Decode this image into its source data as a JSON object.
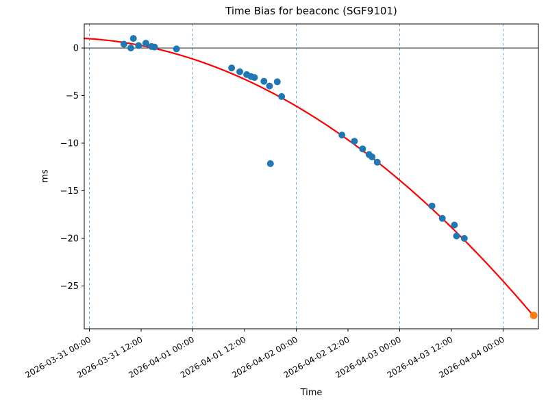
{
  "chart_data": {
    "type": "scatter",
    "title": "Time Bias for beaconc (SGF9101)",
    "xlabel": "Time",
    "ylabel": "ms",
    "x_unit": "hours since 2026-03-31 00:00",
    "xlim_hours": [
      -1.2,
      104.2
    ],
    "ylim": [
      -29.5,
      2.52
    ],
    "y_ticks": [
      0,
      -5,
      -10,
      -15,
      -20,
      -25
    ],
    "x_ticks": [
      {
        "hour": 0,
        "label": "2026-03-31 00:00"
      },
      {
        "hour": 12,
        "label": "2026-03-31 12:00"
      },
      {
        "hour": 24,
        "label": "2026-04-01 00:00"
      },
      {
        "hour": 36,
        "label": "2026-04-01 12:00"
      },
      {
        "hour": 48,
        "label": "2026-04-02 00:00"
      },
      {
        "hour": 60,
        "label": "2026-04-02 12:00"
      },
      {
        "hour": 72,
        "label": "2026-04-03 00:00"
      },
      {
        "hour": 84,
        "label": "2026-04-03 12:00"
      },
      {
        "hour": 96,
        "label": "2026-04-04 00:00"
      }
    ],
    "grid_hours": [
      0,
      24,
      48,
      72,
      96
    ],
    "zero_line": 0,
    "series": [
      {
        "name": "time-bias-observations",
        "color": "#1f77b4",
        "marker_radius": 5,
        "points": [
          [
            8.0,
            0.4
          ],
          [
            9.6,
            0.0
          ],
          [
            10.2,
            1.0
          ],
          [
            11.4,
            0.25
          ],
          [
            13.1,
            0.5
          ],
          [
            14.4,
            0.15
          ],
          [
            15.1,
            0.1
          ],
          [
            20.2,
            -0.1
          ],
          [
            33.0,
            -2.1
          ],
          [
            34.9,
            -2.5
          ],
          [
            36.5,
            -2.8
          ],
          [
            37.5,
            -3.0
          ],
          [
            38.3,
            -3.1
          ],
          [
            40.5,
            -3.5
          ],
          [
            41.8,
            -4.0
          ],
          [
            42.0,
            -12.15
          ],
          [
            43.6,
            -3.55
          ],
          [
            44.6,
            -5.1
          ],
          [
            58.6,
            -9.15
          ],
          [
            61.5,
            -9.8
          ],
          [
            63.4,
            -10.6
          ],
          [
            64.9,
            -11.2
          ],
          [
            65.6,
            -11.45
          ],
          [
            66.8,
            -12.0
          ],
          [
            79.5,
            -16.6
          ],
          [
            81.9,
            -17.9
          ],
          [
            84.7,
            -18.6
          ],
          [
            85.2,
            -19.75
          ],
          [
            87.0,
            -20.0
          ]
        ]
      },
      {
        "name": "latest-observation",
        "color": "#ff7f0e",
        "marker_radius": 5.5,
        "points": [
          [
            103.1,
            -28.1
          ]
        ]
      }
    ],
    "fit_curve": {
      "name": "quadratic-fit",
      "color": "#ff0000",
      "line_width": 2.2,
      "coeffs_ms_per_hour": {
        "a": 0.97,
        "b": -0.03,
        "c": -0.00245
      },
      "t_range_hours": [
        -1.2,
        103.1
      ]
    },
    "style": {
      "grid_color": "#5f9ccd",
      "axis_color": "#000000",
      "zero_line_color": "#000000",
      "tick_label_color": "#000000",
      "background": "#ffffff"
    }
  }
}
